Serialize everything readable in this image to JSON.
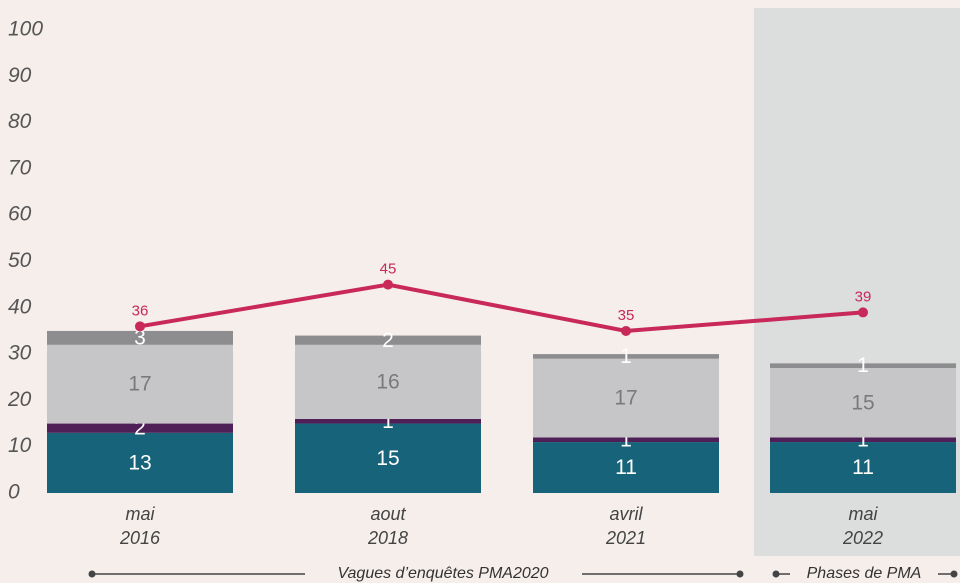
{
  "chart_data": {
    "type": "bar",
    "stacked": true,
    "categories": [
      "mai 2016",
      "aout 2018",
      "avril 2021",
      "mai 2022"
    ],
    "series": [
      {
        "color": "#17647a",
        "label_color": "#ffffff",
        "values": [
          13,
          15,
          11,
          11
        ]
      },
      {
        "color": "#4f1f57",
        "label_color": "#ffffff",
        "values": [
          2,
          1,
          1,
          1
        ]
      },
      {
        "color": "#c6c6c8",
        "label_color": "#7a7a7a",
        "values": [
          17,
          16,
          17,
          15
        ]
      },
      {
        "color": "#8d8d8f",
        "label_color": "#ffffff",
        "values": [
          3,
          2,
          1,
          1
        ]
      }
    ],
    "line": {
      "type": "line",
      "color": "#c8285a",
      "values": [
        36,
        45,
        35,
        39
      ]
    },
    "ylim": [
      0,
      100
    ],
    "yticks": [
      0,
      10,
      20,
      30,
      40,
      50,
      60,
      70,
      80,
      90,
      100
    ],
    "grid": false,
    "annotations": [
      "Vagues d’enquêtes PMA2020",
      "Phases de PMA"
    ]
  }
}
